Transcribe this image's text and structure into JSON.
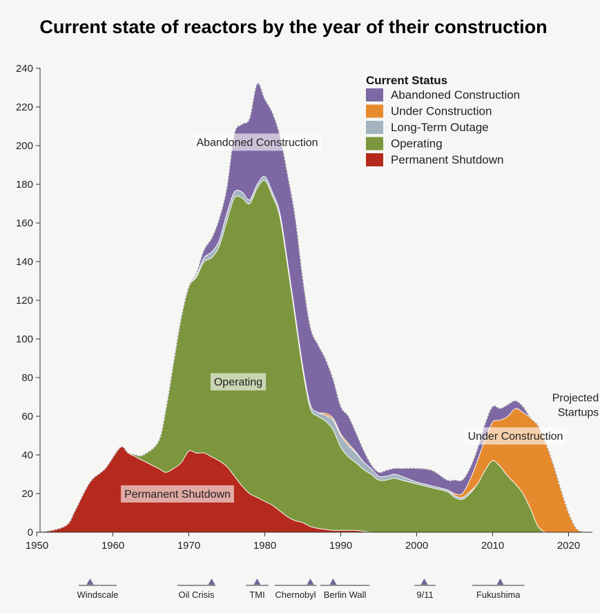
{
  "chart_data": {
    "type": "area",
    "stacked": true,
    "title": "Current state of reactors by the year of their construction",
    "xlabel": "",
    "ylabel": "",
    "xlim": [
      1950,
      2023
    ],
    "ylim": [
      0,
      240
    ],
    "x_ticks": [
      1950,
      1960,
      1970,
      1980,
      1990,
      2000,
      2010,
      2020
    ],
    "y_ticks": [
      0,
      20,
      40,
      60,
      80,
      100,
      120,
      140,
      160,
      180,
      200,
      220,
      240
    ],
    "legend_title": "Current Status",
    "legend_position": "top-right",
    "x": [
      1950,
      1952,
      1954,
      1955,
      1957,
      1959,
      1961,
      1962,
      1963,
      1964,
      1966,
      1967,
      1968,
      1969,
      1970,
      1971,
      1972,
      1973,
      1974,
      1975,
      1976,
      1977,
      1978,
      1979,
      1980,
      1981,
      1982,
      1983,
      1984,
      1985,
      1986,
      1987,
      1988,
      1989,
      1990,
      1991,
      1992,
      1993,
      1994,
      1995,
      1996,
      1997,
      1998,
      2000,
      2002,
      2004,
      2005,
      2006,
      2007,
      2008,
      2009,
      2010,
      2011,
      2012,
      2013,
      2014,
      2015,
      2016,
      2017,
      2018,
      2019,
      2020,
      2021,
      2022
    ],
    "series": [
      {
        "name": "Permanent Shutdown",
        "color": "#b52a1c",
        "values": [
          0,
          1,
          4,
          11,
          26,
          33,
          44,
          41,
          39,
          37,
          33,
          31,
          33,
          36,
          42,
          41,
          41,
          39,
          37,
          34,
          29,
          24,
          20,
          18,
          16,
          14,
          11,
          8,
          6,
          5,
          3,
          2,
          1.5,
          1,
          1,
          1,
          1,
          0.5,
          0,
          0,
          0,
          0,
          0,
          0,
          0,
          0,
          0,
          0,
          0,
          0,
          0,
          0,
          0,
          0,
          0,
          0,
          0,
          0,
          0,
          0,
          0,
          0,
          0,
          0
        ]
      },
      {
        "name": "Operating",
        "color": "#7c963e",
        "values": [
          0,
          0,
          0,
          0,
          0,
          0,
          0,
          0,
          1,
          3,
          14,
          33,
          55,
          75,
          85,
          91,
          99,
          103,
          111,
          127,
          144,
          149,
          150,
          160,
          166,
          160,
          152,
          130,
          105,
          79,
          61,
          58,
          56,
          52,
          43,
          38,
          35,
          32,
          30,
          27,
          27,
          28,
          27,
          25,
          23,
          21,
          18,
          17,
          20,
          25,
          32,
          37,
          34,
          29,
          25,
          20,
          12,
          3,
          0,
          0,
          0,
          0,
          0,
          0
        ]
      },
      {
        "name": "Long-Term Outage",
        "color": "#a3b4c0",
        "values": [
          0,
          0,
          0,
          0,
          0,
          0,
          0,
          0,
          0,
          0,
          0,
          0,
          0,
          0,
          0,
          1,
          2,
          3,
          3,
          4,
          3,
          3,
          2,
          2,
          2,
          2,
          2,
          2,
          2,
          2,
          2,
          2,
          3,
          5,
          6,
          6,
          5,
          4,
          3,
          2,
          2,
          2,
          2,
          1,
          1,
          1,
          1,
          1,
          1,
          0,
          0,
          0,
          0,
          0,
          0,
          0,
          0,
          0,
          0,
          0,
          0,
          0,
          0,
          0
        ]
      },
      {
        "name": "Under Construction",
        "color": "#e68a2e",
        "values": [
          0,
          0,
          0,
          0,
          0,
          0,
          0,
          0,
          0,
          0,
          0,
          0,
          0,
          0,
          0,
          0,
          0,
          0,
          0,
          0,
          0,
          0,
          0,
          0,
          0,
          0,
          0,
          0,
          0,
          0,
          0,
          0,
          1,
          1,
          1,
          1,
          0.5,
          0,
          0,
          0,
          0,
          0,
          0,
          0,
          0,
          0,
          1,
          2,
          6,
          12,
          16,
          20,
          24,
          31,
          39,
          42,
          47,
          52,
          46,
          35,
          22,
          10,
          2,
          0
        ]
      },
      {
        "name": "Abandoned Construction",
        "color": "#7e68a4",
        "values": [
          0,
          0,
          0,
          0,
          0,
          0,
          0,
          0,
          0,
          0,
          0,
          0,
          0,
          0,
          0,
          1,
          4,
          7,
          11,
          13,
          30,
          35,
          42,
          52,
          40,
          41,
          40,
          45,
          50,
          45,
          40,
          35,
          28,
          20,
          14,
          14,
          10,
          6,
          2,
          2,
          3,
          3,
          4,
          7,
          8,
          5,
          7,
          7,
          6,
          6,
          8,
          8,
          6,
          6,
          4,
          3,
          0,
          0,
          0,
          0,
          0,
          0,
          0,
          0
        ]
      }
    ],
    "area_labels": [
      {
        "series": "Abandoned Construction",
        "text": "Abandoned Construction",
        "x": 1979,
        "y": 202
      },
      {
        "series": "Operating",
        "text": "Operating",
        "x": 1976.5,
        "y": 78
      },
      {
        "series": "Permanent Shutdown",
        "text": "Permanent Shutdown",
        "x": 1968.5,
        "y": 20
      },
      {
        "series": "Under Construction",
        "text": "Under Construction",
        "x": 2013,
        "y": 50
      }
    ],
    "projected": {
      "lines": [
        "Projected",
        "Startups"
      ],
      "x": 2020.8,
      "y": 58
    },
    "events": [
      {
        "name": "Windscale",
        "year": 1957,
        "from": 1955.5,
        "to": 1960.5
      },
      {
        "name": "Oil Crisis",
        "year": 1973,
        "from": 1968.5,
        "to": 1973.5
      },
      {
        "name": "TMI",
        "year": 1979,
        "from": 1977.5,
        "to": 1980.5
      },
      {
        "name": "Chernobyl",
        "year": 1986,
        "from": 1981.3,
        "to": 1986.8
      },
      {
        "name": "Berlin Wall",
        "year": 1989,
        "from": 1987.3,
        "to": 1993.8
      },
      {
        "name": "9/11",
        "year": 2001,
        "from": 1999.7,
        "to": 2002.5
      },
      {
        "name": "Fukushima",
        "year": 2011,
        "from": 2007.3,
        "to": 2014.2
      }
    ]
  }
}
